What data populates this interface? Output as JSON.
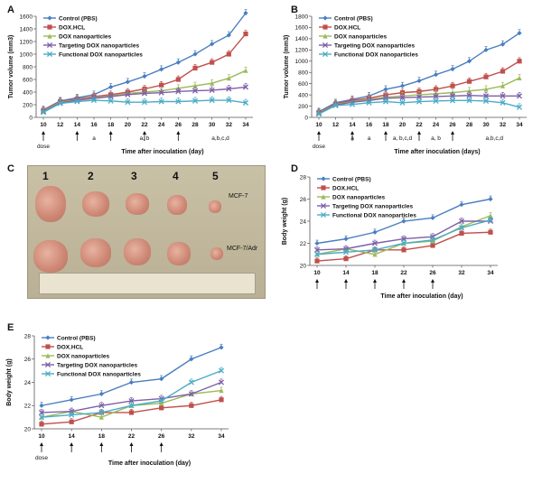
{
  "panels": {
    "A": {
      "letter": "A",
      "xlabel": "Time after inoculation (day)",
      "ylabel": "Tumor volume (mm3)",
      "x": [
        10,
        12,
        14,
        16,
        18,
        20,
        22,
        24,
        26,
        28,
        30,
        32,
        34
      ],
      "xticks": [
        10,
        12,
        14,
        16,
        18,
        20,
        22,
        24,
        26,
        28,
        30,
        32,
        34
      ],
      "yticks": [
        0,
        200,
        400,
        600,
        800,
        1000,
        1200,
        1400,
        1600
      ],
      "ylim": [
        0,
        1600
      ],
      "dose_label": "dose",
      "arrows_at": [
        10,
        14,
        18,
        22,
        26
      ],
      "annotations": [
        {
          "text": "a",
          "x": 16
        },
        {
          "text": "a, b",
          "x": 22
        },
        {
          "text": "a,b,c,d",
          "x": 31
        }
      ],
      "series": [
        {
          "name": "Control (PBS)",
          "color": "#4a7ec0",
          "marker": "diamond",
          "values": [
            120,
            260,
            310,
            360,
            480,
            560,
            650,
            760,
            870,
            1000,
            1160,
            1300,
            1650
          ]
        },
        {
          "name": "DOX.HCL",
          "color": "#c0504d",
          "marker": "square",
          "values": [
            110,
            250,
            290,
            330,
            360,
            400,
            450,
            510,
            600,
            780,
            870,
            1000,
            1320
          ]
        },
        {
          "name": "DOX nanoparticles",
          "color": "#9bbb59",
          "marker": "triangle",
          "values": [
            100,
            240,
            280,
            310,
            340,
            380,
            400,
            420,
            460,
            500,
            540,
            620,
            740
          ]
        },
        {
          "name": "Targeting DOX nanoparticles",
          "color": "#7f5fa8",
          "marker": "x",
          "values": [
            90,
            230,
            270,
            300,
            330,
            360,
            380,
            390,
            410,
            420,
            430,
            450,
            480
          ]
        },
        {
          "name": "Functional DOX nanoparticles",
          "color": "#4bacc6",
          "marker": "x",
          "values": [
            80,
            220,
            250,
            270,
            260,
            240,
            240,
            250,
            250,
            260,
            270,
            270,
            230
          ]
        }
      ]
    },
    "B": {
      "letter": "B",
      "xlabel": "Time after inoculation (days)",
      "ylabel": "Tumor volume (mm3)",
      "x": [
        10,
        12,
        14,
        16,
        18,
        20,
        22,
        24,
        26,
        28,
        30,
        32,
        34
      ],
      "xticks": [
        10,
        12,
        14,
        16,
        18,
        20,
        22,
        24,
        26,
        28,
        30,
        32,
        34
      ],
      "yticks": [
        0,
        200,
        400,
        600,
        800,
        1000,
        1200,
        1400,
        1600,
        1800
      ],
      "ylim": [
        0,
        1800
      ],
      "dose_label": "dose",
      "arrows_at": [
        10,
        14,
        18,
        22,
        26
      ],
      "annotations": [
        {
          "text": "a",
          "x": 14
        },
        {
          "text": "a",
          "x": 16
        },
        {
          "text": "a, b,c,d",
          "x": 20
        },
        {
          "text": "a, b",
          "x": 24
        },
        {
          "text": "a,b,c,d",
          "x": 31
        }
      ],
      "series": [
        {
          "name": "Control (PBS)",
          "color": "#4a7ec0",
          "marker": "diamond",
          "values": [
            100,
            260,
            320,
            380,
            500,
            560,
            650,
            760,
            860,
            1000,
            1200,
            1300,
            1500
          ]
        },
        {
          "name": "DOX.HCL",
          "color": "#c0504d",
          "marker": "square",
          "values": [
            90,
            240,
            300,
            340,
            400,
            440,
            460,
            500,
            560,
            640,
            720,
            820,
            1000
          ]
        },
        {
          "name": "DOX nanoparticles",
          "color": "#9bbb59",
          "marker": "triangle",
          "values": [
            80,
            230,
            280,
            320,
            360,
            380,
            400,
            420,
            440,
            470,
            500,
            560,
            700
          ]
        },
        {
          "name": "Targeting DOX nanoparticles",
          "color": "#7f5fa8",
          "marker": "x",
          "values": [
            70,
            220,
            270,
            300,
            340,
            350,
            360,
            370,
            380,
            390,
            380,
            380,
            380
          ]
        },
        {
          "name": "Functional DOX nanoparticles",
          "color": "#4bacc6",
          "marker": "x",
          "values": [
            60,
            210,
            230,
            260,
            280,
            260,
            280,
            290,
            300,
            300,
            290,
            260,
            180
          ]
        }
      ]
    },
    "C": {
      "letter": "C",
      "numbers": [
        "1",
        "2",
        "3",
        "4",
        "5"
      ],
      "row_labels": [
        "MCF-7",
        "MCF-7/Adr"
      ]
    },
    "D": {
      "letter": "D",
      "xlabel": "Time after inoculation (day)",
      "ylabel": "Body weight (g)",
      "x": [
        10,
        14,
        18,
        22,
        26,
        32,
        34
      ],
      "xticks": [
        10,
        14,
        18,
        22,
        26,
        32,
        34
      ],
      "yticks": [
        20,
        22,
        24,
        26,
        28
      ],
      "ylim": [
        20,
        28
      ],
      "arrows_at": [
        10,
        14,
        18,
        22,
        26
      ],
      "series": [
        {
          "name": "Control (PBS)",
          "color": "#4a7ec0",
          "marker": "diamond",
          "values": [
            22.0,
            22.4,
            23.0,
            24.0,
            24.3,
            25.5,
            26.0
          ]
        },
        {
          "name": "DOX.HCL",
          "color": "#c0504d",
          "marker": "square",
          "values": [
            20.4,
            20.6,
            21.4,
            21.4,
            21.8,
            22.9,
            23.0
          ]
        },
        {
          "name": "DOX nanoparticles",
          "color": "#9bbb59",
          "marker": "triangle",
          "values": [
            21.0,
            21.5,
            21.0,
            22.0,
            22.2,
            23.5,
            24.5
          ]
        },
        {
          "name": "Targeting DOX nanoparticles",
          "color": "#7f5fa8",
          "marker": "x",
          "values": [
            21.4,
            21.5,
            22.0,
            22.4,
            22.6,
            24.0,
            24.0
          ]
        },
        {
          "name": "Functional DOX nanoparticles",
          "color": "#4bacc6",
          "marker": "x",
          "values": [
            21.0,
            21.2,
            21.4,
            22.0,
            22.3,
            23.4,
            24.1
          ]
        }
      ]
    },
    "E": {
      "letter": "E",
      "xlabel": "Time after inoculation (day)",
      "ylabel": "Body weight (g)",
      "x": [
        10,
        14,
        18,
        22,
        26,
        32,
        34
      ],
      "xticks": [
        10,
        14,
        18,
        22,
        26,
        32,
        34
      ],
      "yticks": [
        20,
        22,
        24,
        26,
        28
      ],
      "ylim": [
        20,
        28
      ],
      "dose_label": "dose",
      "arrows_at": [
        10,
        14,
        18,
        22,
        26
      ],
      "series": [
        {
          "name": "Control (PBS)",
          "color": "#4a7ec0",
          "marker": "diamond",
          "values": [
            22.0,
            22.5,
            23.0,
            24.0,
            24.3,
            26.0,
            27.0
          ]
        },
        {
          "name": "DOX.HCL",
          "color": "#c0504d",
          "marker": "square",
          "values": [
            20.4,
            20.6,
            21.4,
            21.4,
            21.8,
            22.0,
            22.5
          ]
        },
        {
          "name": "DOX nanoparticles",
          "color": "#9bbb59",
          "marker": "triangle",
          "values": [
            21.0,
            21.5,
            21.0,
            22.0,
            22.2,
            23.0,
            23.3
          ]
        },
        {
          "name": "Targeting DOX nanoparticles",
          "color": "#7f5fa8",
          "marker": "x",
          "values": [
            21.4,
            21.5,
            22.0,
            22.4,
            22.6,
            23.0,
            24.0
          ]
        },
        {
          "name": "Functional DOX nanoparticles",
          "color": "#4bacc6",
          "marker": "x",
          "values": [
            21.0,
            21.2,
            21.4,
            22.0,
            22.4,
            24.0,
            25.0
          ]
        }
      ]
    }
  }
}
